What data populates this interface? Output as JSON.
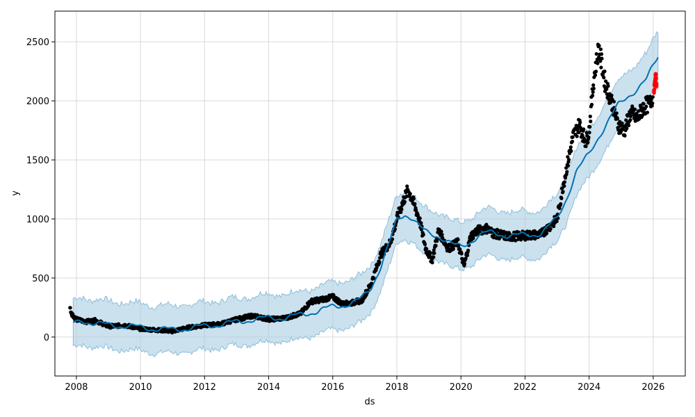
{
  "chart_data": {
    "type": "line",
    "xlabel": "ds",
    "ylabel": "y",
    "xlim": [
      2007.33,
      2027.0
    ],
    "ylim": [
      -330,
      2760
    ],
    "grid": true,
    "x_ticks": [
      2008,
      2010,
      2012,
      2014,
      2016,
      2018,
      2020,
      2022,
      2024,
      2026
    ],
    "x_tick_labels": [
      "2008",
      "2010",
      "2012",
      "2014",
      "2016",
      "2018",
      "2020",
      "2022",
      "2024",
      "2026"
    ],
    "y_ticks": [
      0,
      500,
      1000,
      1500,
      2000,
      2500
    ],
    "y_tick_labels": [
      "0",
      "500",
      "1000",
      "1500",
      "2000",
      "2500"
    ],
    "colors": {
      "forecast_line": "#0072B2",
      "uncertainty_band": "#a9cde3",
      "observed_points": "#000000",
      "holdout_points": "#ff0000",
      "grid": "#d9d9d9"
    },
    "series": [
      {
        "kind": "forecast",
        "x": [
          2007.9,
          2008.2,
          2008.5,
          2009.0,
          2009.5,
          2010.0,
          2010.5,
          2011.0,
          2011.5,
          2012.0,
          2012.5,
          2013.0,
          2013.5,
          2014.0,
          2014.5,
          2015.0,
          2015.5,
          2016.0,
          2016.3,
          2016.6,
          2016.9,
          2017.2,
          2017.5,
          2017.8,
          2018.0,
          2018.25,
          2018.5,
          2018.75,
          2019.0,
          2019.25,
          2019.5,
          2019.75,
          2020.0,
          2020.25,
          2020.5,
          2020.75,
          2021.0,
          2021.5,
          2022.0,
          2022.5,
          2023.0,
          2023.3,
          2023.6,
          2024.0,
          2024.3,
          2024.6,
          2024.9,
          2025.2,
          2025.5,
          2025.8,
          2026.0,
          2026.15
        ],
        "y": [
          110,
          140,
          120,
          100,
          95,
          80,
          70,
          60,
          75,
          90,
          110,
          125,
          150,
          160,
          165,
          185,
          220,
          255,
          270,
          290,
          320,
          420,
          600,
          820,
          990,
          1040,
          1010,
          920,
          870,
          860,
          830,
          780,
          760,
          800,
          850,
          880,
          880,
          860,
          860,
          880,
          1000,
          1180,
          1400,
          1550,
          1700,
          1830,
          1960,
          2040,
          2100,
          2180,
          2300,
          2380
        ]
      },
      {
        "kind": "uncertainty_band",
        "lower_offset": -200,
        "upper_offset": 200
      },
      {
        "kind": "observed",
        "x": [
          2007.8,
          2007.85,
          2008.0,
          2008.3,
          2008.6,
          2009.0,
          2009.5,
          2010.0,
          2010.5,
          2011.0,
          2011.5,
          2012.0,
          2012.5,
          2013.0,
          2013.5,
          2014.0,
          2014.5,
          2015.0,
          2015.3,
          2015.7,
          2016.0,
          2016.3,
          2016.6,
          2016.9,
          2017.2,
          2017.5,
          2017.8,
          2018.0,
          2018.2,
          2018.35,
          2018.5,
          2018.7,
          2018.9,
          2019.1,
          2019.3,
          2019.6,
          2019.9,
          2020.1,
          2020.3,
          2020.5,
          2020.8,
          2021.0,
          2021.5,
          2022.0,
          2022.5,
          2023.0,
          2023.2,
          2023.5,
          2023.7,
          2023.9,
          2024.0,
          2024.15,
          2024.3,
          2024.5,
          2024.7,
          2024.9,
          2025.1,
          2025.3,
          2025.5,
          2025.7,
          2025.9,
          2026.0
        ],
        "y": [
          250,
          200,
          150,
          130,
          140,
          90,
          100,
          70,
          60,
          50,
          80,
          100,
          110,
          150,
          180,
          150,
          160,
          200,
          300,
          320,
          340,
          280,
          290,
          310,
          450,
          700,
          800,
          1000,
          1150,
          1250,
          1150,
          1000,
          750,
          650,
          900,
          750,
          800,
          600,
          850,
          900,
          920,
          880,
          850,
          860,
          870,
          1000,
          1300,
          1700,
          1800,
          1650,
          1750,
          2200,
          2450,
          2150,
          2000,
          1800,
          1750,
          1900,
          1850,
          1950,
          1980,
          2050
        ]
      },
      {
        "kind": "holdout",
        "x": [
          2026.02,
          2026.05,
          2026.08,
          2026.11
        ],
        "y": [
          2080,
          2150,
          2220,
          2120
        ]
      }
    ]
  }
}
